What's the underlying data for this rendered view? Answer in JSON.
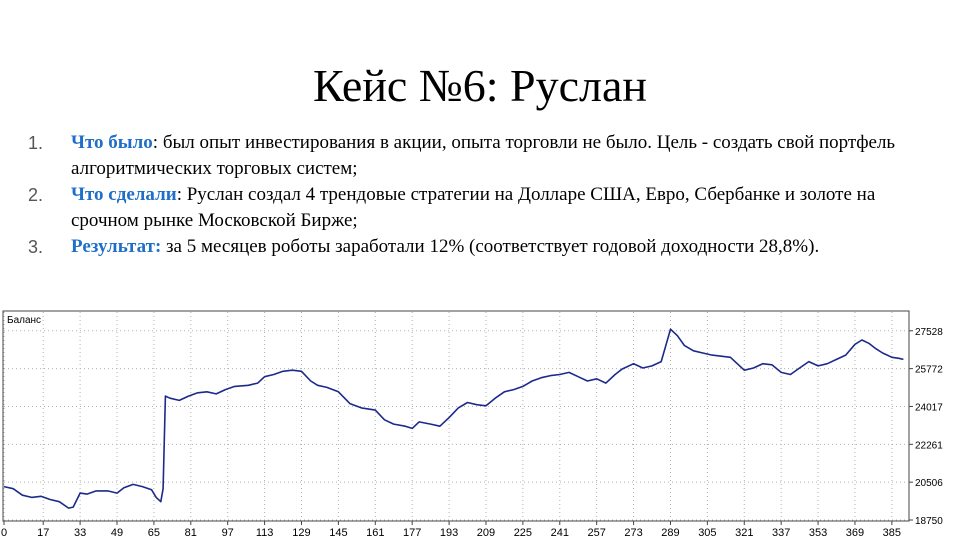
{
  "slide": {
    "title": "Кейс №6: Руслан"
  },
  "points": [
    {
      "number": "1.",
      "head": "Что было",
      "sep": ":",
      "text": " был опыт инвестирования в акции, опыта торговли не было. Цель - создать свой портфель алгоритмических торговых систем;"
    },
    {
      "number": "2.",
      "head": "Что сделали",
      "sep": ":",
      "text": " Руслан создал 4 трендовые стратегии на Долларе США, Евро, Сбербанке и золоте на срочном рынке Московской Бирже;"
    },
    {
      "number": "3.",
      "head": "Результат:",
      "sep": "",
      "text": " за 5 месяцев роботы заработали 12% (соответствует годовой доходности 28,8%)."
    }
  ],
  "chart_data": {
    "type": "line",
    "title": "Баланс",
    "line_color": "#1c2a8c",
    "grid": true,
    "x_ticks": [
      0,
      17,
      33,
      49,
      65,
      81,
      97,
      113,
      129,
      145,
      161,
      177,
      193,
      209,
      225,
      241,
      257,
      273,
      289,
      305,
      321,
      337,
      353,
      369,
      385
    ],
    "y_ticks": [
      18750,
      20506,
      22261,
      24017,
      25772,
      27528
    ],
    "xlim": [
      0,
      392
    ],
    "ylim": [
      18750,
      28400
    ],
    "series": [
      {
        "x": [
          0,
          4,
          8,
          12,
          16,
          20,
          24,
          28,
          30,
          33,
          36,
          40,
          45,
          49,
          52,
          56,
          60,
          64,
          66,
          68,
          69,
          70,
          72,
          76,
          80,
          84,
          88,
          92,
          96,
          100,
          106,
          110,
          113,
          117,
          121,
          125,
          129,
          133,
          136,
          140,
          145,
          150,
          155,
          161,
          165,
          169,
          174,
          177,
          180,
          185,
          189,
          193,
          197,
          201,
          205,
          209,
          213,
          217,
          221,
          225,
          229,
          233,
          237,
          241,
          245,
          249,
          253,
          257,
          261,
          265,
          268,
          273,
          277,
          281,
          285,
          289,
          292,
          295,
          299,
          303,
          307,
          311,
          315,
          319,
          321,
          325,
          329,
          333,
          337,
          341,
          345,
          349,
          353,
          357,
          361,
          365,
          369,
          372,
          375,
          378,
          381,
          385,
          388,
          390
        ],
        "y": [
          20300,
          20200,
          19900,
          19800,
          19850,
          19700,
          19600,
          19300,
          19350,
          20000,
          19950,
          20100,
          20100,
          20000,
          20250,
          20400,
          20300,
          20150,
          19800,
          19600,
          20200,
          24500,
          24400,
          24300,
          24500,
          24650,
          24700,
          24600,
          24800,
          24950,
          25000,
          25100,
          25400,
          25500,
          25650,
          25700,
          25650,
          25200,
          25000,
          24900,
          24700,
          24150,
          23950,
          23850,
          23400,
          23200,
          23100,
          23000,
          23300,
          23200,
          23100,
          23500,
          23950,
          24200,
          24100,
          24050,
          24400,
          24700,
          24800,
          24950,
          25200,
          25350,
          25450,
          25500,
          25600,
          25400,
          25200,
          25300,
          25100,
          25500,
          25750,
          26000,
          25800,
          25900,
          26100,
          27600,
          27300,
          26850,
          26600,
          26500,
          26400,
          26350,
          26300,
          25900,
          25700,
          25800,
          26000,
          25950,
          25600,
          25500,
          25800,
          26100,
          25900,
          26000,
          26200,
          26400,
          26900,
          27100,
          26950,
          26700,
          26500,
          26300,
          26250,
          26200
        ]
      }
    ]
  }
}
